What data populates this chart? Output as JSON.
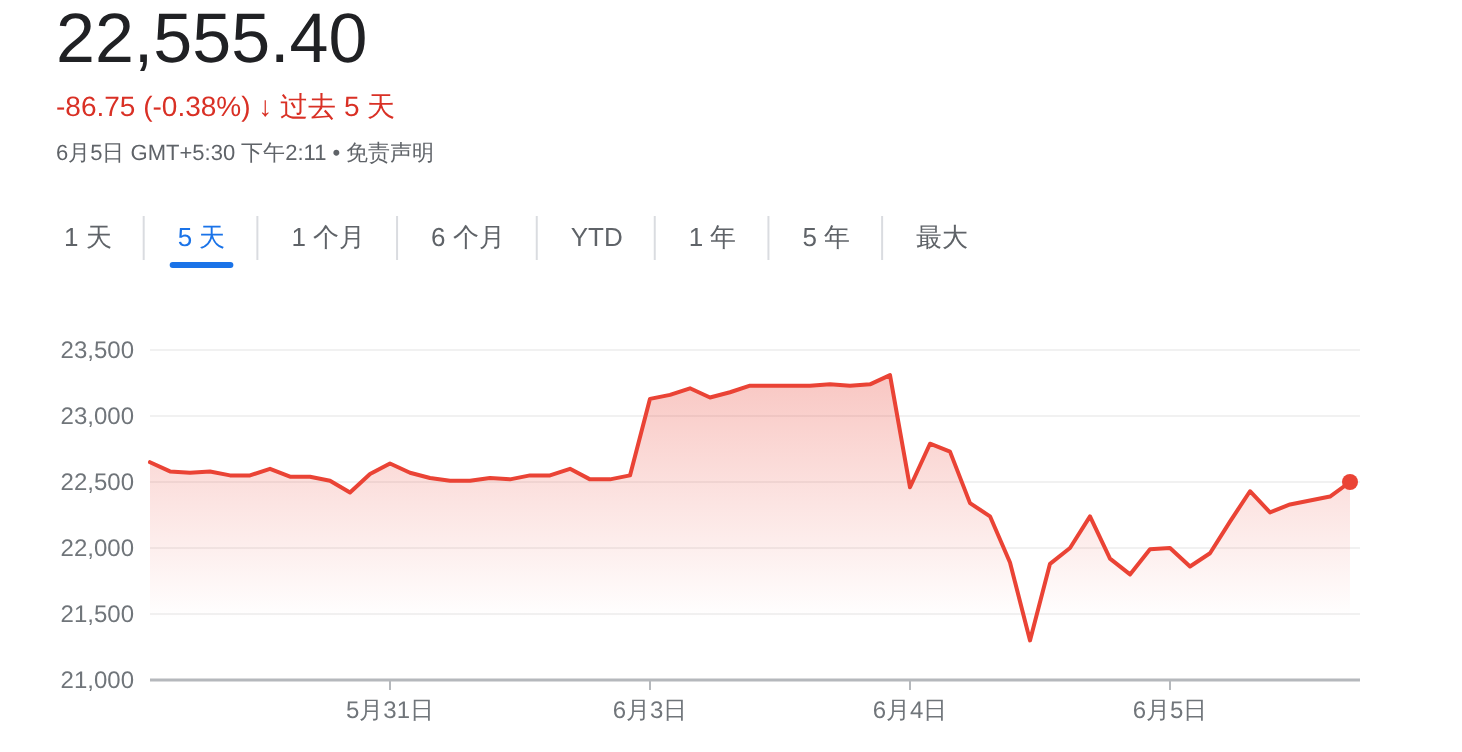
{
  "chart_data": {
    "type": "area",
    "title": "22,555.40",
    "subtitle": "-86.75 (-0.38%) ↓ 过去 5 天",
    "annotations": [
      "6月5日 GMT+5:30 下午2:11 • 免责声明",
      "1 天",
      "5 天",
      "1 个月",
      "6 个月",
      "YTD",
      "1 年",
      "5 年",
      "最大"
    ],
    "categories": [
      null,
      null,
      null,
      null,
      null,
      null,
      null,
      null,
      null,
      null,
      null,
      null,
      "5月31日",
      null,
      null,
      null,
      null,
      null,
      null,
      null,
      null,
      null,
      null,
      null,
      null,
      "6月3日",
      null,
      null,
      null,
      null,
      null,
      null,
      null,
      null,
      null,
      null,
      null,
      null,
      "6月4日",
      null,
      null,
      null,
      null,
      null,
      null,
      null,
      null,
      null,
      null,
      null,
      null,
      "6月5日",
      null,
      null,
      null,
      null,
      null,
      null,
      null,
      null,
      null
    ],
    "series": [
      {
        "color": "#ea4335",
        "values": [
          22650,
          22580,
          22570,
          22580,
          22550,
          22550,
          22600,
          22540,
          22540,
          22510,
          22420,
          22560,
          22640,
          22570,
          22530,
          22510,
          22510,
          22530,
          22520,
          22550,
          22550,
          22600,
          22520,
          22520,
          22550,
          23130,
          23160,
          23210,
          23140,
          23180,
          23230,
          23230,
          23230,
          23230,
          23240,
          23230,
          23240,
          23310,
          22460,
          22790,
          22730,
          22340,
          22240,
          21890,
          21300,
          21880,
          22000,
          22240,
          21920,
          21800,
          21990,
          22000,
          21860,
          21960,
          22200,
          22430,
          22270,
          22330,
          22360,
          22390,
          22500
        ]
      }
    ],
    "ylim": [
      21000,
      23500
    ],
    "yticks": [
      {
        "value": 21000,
        "label": "21,000"
      },
      {
        "value": 21500,
        "label": "21,500"
      },
      {
        "value": 22000,
        "label": "22,000"
      },
      {
        "value": 22500,
        "label": "22,500"
      },
      {
        "value": 23000,
        "label": "23,000"
      },
      {
        "value": 23500,
        "label": "23,500"
      }
    ],
    "grid": "y",
    "marker": "none",
    "line_style": "solid"
  }
}
